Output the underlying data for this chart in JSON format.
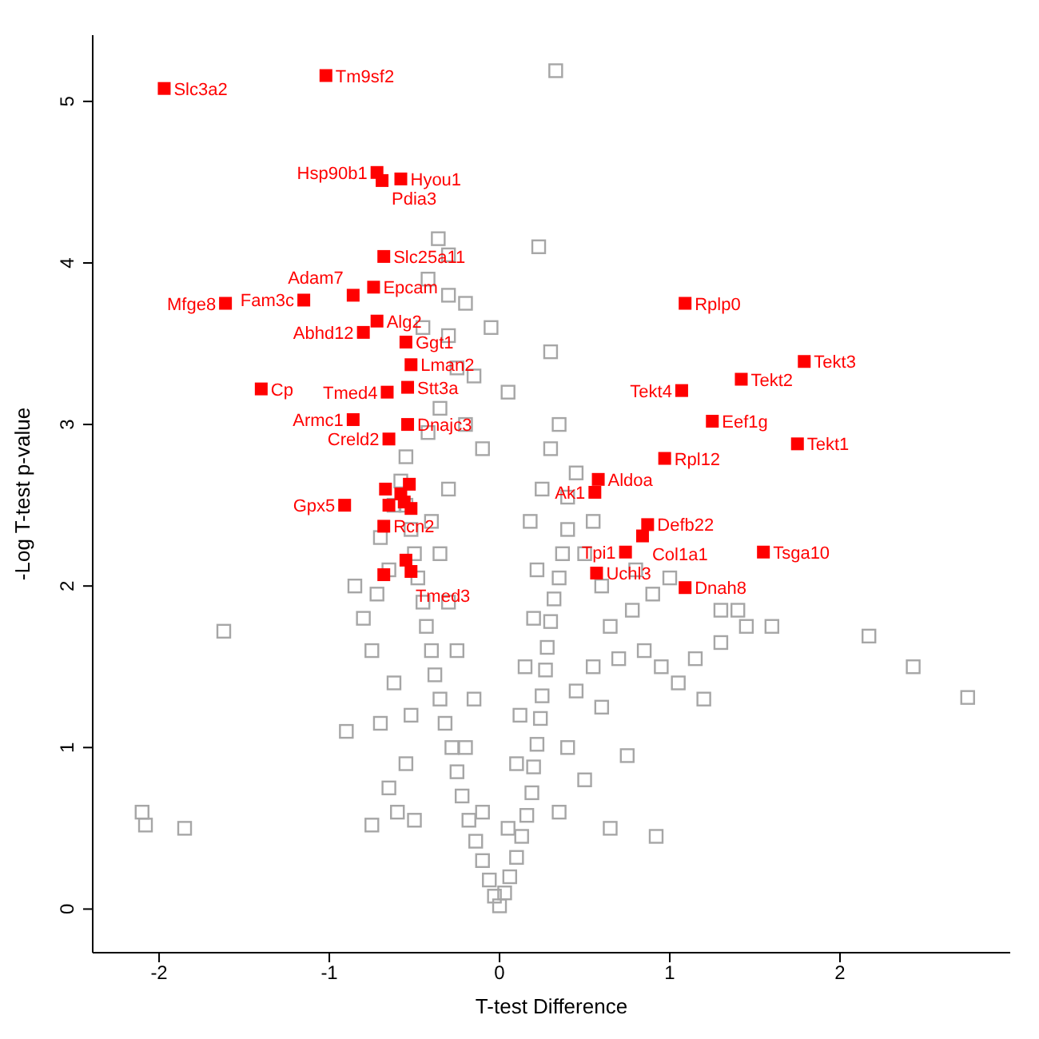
{
  "chart_data": {
    "type": "scatter",
    "xlabel": "T-test Difference",
    "ylabel": "-Log T-test p-value",
    "xlim": [
      -2.39,
      3.0
    ],
    "ylim": [
      -0.27,
      5.41
    ],
    "xticks": [
      -2,
      -1,
      0,
      1,
      2
    ],
    "yticks": [
      0,
      1,
      2,
      3,
      4,
      5
    ],
    "grid": false,
    "legend": false,
    "marker": "square",
    "series": [
      {
        "color": "#a6a6a6",
        "x": [
          0,
          -0.03,
          0.03,
          -0.06,
          0.06,
          -0.1,
          0.1,
          -0.14,
          0.13,
          -0.18,
          0.16,
          -0.22,
          0.19,
          -0.25,
          0.2,
          -0.28,
          0.22,
          -0.32,
          0.24,
          -0.35,
          0.25,
          -0.38,
          0.27,
          -0.4,
          0.28,
          -0.43,
          0.3,
          -0.45,
          0.32,
          -0.48,
          0.35,
          -0.5,
          0.37,
          -0.52,
          0.4,
          -0.55,
          -0.58,
          -0.55,
          -0.1,
          0.05,
          -0.2,
          0.1,
          -0.15,
          0.12,
          -0.25,
          0.15,
          -0.3,
          0.2,
          -0.35,
          0.22,
          -0.4,
          0.18,
          -0.3,
          0.25,
          -0.6,
          -0.5,
          -0.7,
          -0.62,
          -0.75,
          -0.8,
          -0.72,
          -0.65,
          -0.85,
          -0.7,
          -0.62,
          -0.65,
          -0.55,
          -0.52,
          0.35,
          0.5,
          0.4,
          0.6,
          0.45,
          0.55,
          0.7,
          0.85,
          0.78,
          0.65,
          0.95,
          1.05,
          1.2,
          1.15,
          1.3,
          0.9,
          1.0,
          0.6,
          0.5,
          0.8,
          1.3,
          1.45,
          0.75,
          0.65,
          -0.36,
          -0.3,
          -0.42,
          -0.3,
          -0.2,
          -0.45,
          -0.3,
          -0.25,
          -0.15,
          -0.35,
          -0.42,
          -0.2,
          -0.1,
          0.3,
          0.35,
          0.45,
          0.4,
          0.3,
          0.55,
          0.23,
          0.33,
          0.05,
          -0.05,
          -2.1,
          -2.08,
          -1.85,
          -1.62,
          -0.9,
          -0.75,
          2.17,
          2.43,
          2.75,
          0.92,
          1.4,
          1.6
        ],
        "values": [
          0.02,
          0.08,
          0.1,
          0.18,
          0.2,
          0.3,
          0.32,
          0.42,
          0.45,
          0.55,
          0.58,
          0.7,
          0.72,
          0.85,
          0.88,
          1.0,
          1.02,
          1.15,
          1.18,
          1.3,
          1.32,
          1.45,
          1.48,
          1.6,
          1.62,
          1.75,
          1.78,
          1.9,
          1.92,
          2.05,
          2.05,
          2.2,
          2.2,
          2.35,
          2.35,
          2.5,
          2.65,
          2.8,
          0.6,
          0.5,
          1.0,
          0.9,
          1.3,
          1.2,
          1.6,
          1.5,
          1.9,
          1.8,
          2.2,
          2.1,
          2.4,
          2.4,
          2.6,
          2.6,
          0.6,
          0.55,
          1.15,
          1.4,
          1.6,
          1.8,
          1.95,
          2.1,
          2.0,
          2.3,
          2.5,
          0.75,
          0.9,
          1.2,
          0.6,
          0.8,
          1.0,
          1.25,
          1.35,
          1.5,
          1.55,
          1.6,
          1.85,
          1.75,
          1.5,
          1.4,
          1.3,
          1.55,
          1.65,
          1.95,
          2.05,
          2.0,
          2.2,
          2.1,
          1.85,
          1.75,
          0.95,
          0.5,
          4.15,
          4.05,
          3.9,
          3.8,
          3.75,
          3.6,
          3.55,
          3.35,
          3.3,
          3.1,
          2.95,
          3.0,
          2.85,
          3.45,
          3.0,
          2.7,
          2.55,
          2.85,
          2.4,
          4.1,
          5.19,
          3.2,
          3.6,
          0.6,
          0.52,
          0.5,
          1.72,
          1.1,
          0.52,
          1.69,
          1.5,
          1.31,
          0.45,
          1.85,
          1.75
        ]
      },
      {
        "color": "#ff0000",
        "x": [
          -1.97,
          -1.02,
          -0.72,
          -0.58,
          -0.69,
          -0.68,
          -0.74,
          -0.86,
          -1.15,
          -1.61,
          -0.72,
          -0.8,
          -0.55,
          -0.52,
          -0.54,
          -0.66,
          -1.4,
          -0.86,
          -0.54,
          -0.65,
          -0.67,
          -0.53,
          -0.58,
          -0.91,
          -0.65,
          -0.56,
          -0.52,
          -0.68,
          -0.55,
          -0.52,
          -0.68,
          1.09,
          1.79,
          1.42,
          1.07,
          1.25,
          1.75,
          0.97,
          0.58,
          0.56,
          0.87,
          0.84,
          0.74,
          1.55,
          0.57,
          1.09
        ],
        "values": [
          5.08,
          5.16,
          4.56,
          4.52,
          4.51,
          4.04,
          3.85,
          3.8,
          3.77,
          3.75,
          3.64,
          3.57,
          3.51,
          3.37,
          3.23,
          3.2,
          3.22,
          3.03,
          3.0,
          2.91,
          2.6,
          2.63,
          2.57,
          2.5,
          2.5,
          2.52,
          2.48,
          2.37,
          2.16,
          2.09,
          2.07,
          3.75,
          3.39,
          3.28,
          3.21,
          3.02,
          2.88,
          2.79,
          2.66,
          2.58,
          2.38,
          2.31,
          2.21,
          2.21,
          2.08,
          1.99
        ]
      }
    ],
    "annotations": [
      {
        "text": "Slc3a2",
        "x": -1.97,
        "y": 5.08
      },
      {
        "text": "Tm9sf2",
        "x": -1.02,
        "y": 5.16
      },
      {
        "text": "Hsp90b1",
        "x": -0.72,
        "y": 4.56
      },
      {
        "text": "Hyou1",
        "x": -0.58,
        "y": 4.52
      },
      {
        "text": "Pdia3",
        "x": -0.69,
        "y": 4.51
      },
      {
        "text": "Slc25a11",
        "x": -0.68,
        "y": 4.04
      },
      {
        "text": "Epcam",
        "x": -0.74,
        "y": 3.85
      },
      {
        "text": "Adam7",
        "x": -0.86,
        "y": 3.8
      },
      {
        "text": "Fam3c",
        "x": -1.15,
        "y": 3.77
      },
      {
        "text": "Mfge8",
        "x": -1.61,
        "y": 3.75
      },
      {
        "text": "Alg2",
        "x": -0.72,
        "y": 3.64
      },
      {
        "text": "Abhd12",
        "x": -0.8,
        "y": 3.57
      },
      {
        "text": "Ggt1",
        "x": -0.55,
        "y": 3.51
      },
      {
        "text": "Lman2",
        "x": -0.52,
        "y": 3.37
      },
      {
        "text": "Stt3a",
        "x": -0.54,
        "y": 3.23
      },
      {
        "text": "Tmed4",
        "x": -0.66,
        "y": 3.2
      },
      {
        "text": "Cp",
        "x": -1.4,
        "y": 3.22
      },
      {
        "text": "Armc1",
        "x": -0.86,
        "y": 3.03
      },
      {
        "text": "Dnajc3",
        "x": -0.54,
        "y": 3.0
      },
      {
        "text": "Creld2",
        "x": -0.65,
        "y": 2.91
      },
      {
        "text": "Gpx5",
        "x": -0.91,
        "y": 2.5
      },
      {
        "text": "Rcn2",
        "x": -0.68,
        "y": 2.37
      },
      {
        "text": "Tmed3",
        "x": -0.55,
        "y": 2.16
      },
      {
        "text": "Rplp0",
        "x": 1.09,
        "y": 3.75
      },
      {
        "text": "Tekt3",
        "x": 1.79,
        "y": 3.39
      },
      {
        "text": "Tekt2",
        "x": 1.42,
        "y": 3.28
      },
      {
        "text": "Tekt4",
        "x": 1.07,
        "y": 3.21
      },
      {
        "text": "Eef1g",
        "x": 1.25,
        "y": 3.02
      },
      {
        "text": "Tekt1",
        "x": 1.75,
        "y": 2.88
      },
      {
        "text": "Rpl12",
        "x": 0.97,
        "y": 2.79
      },
      {
        "text": "Aldoa",
        "x": 0.58,
        "y": 2.66
      },
      {
        "text": "Ak1",
        "x": 0.56,
        "y": 2.58
      },
      {
        "text": "Defb22",
        "x": 0.87,
        "y": 2.38
      },
      {
        "text": "Col1a1",
        "x": 0.84,
        "y": 2.31
      },
      {
        "text": "Tpi1",
        "x": 0.74,
        "y": 2.21
      },
      {
        "text": "Tsga10",
        "x": 1.55,
        "y": 2.21
      },
      {
        "text": "Uchl3",
        "x": 0.57,
        "y": 2.08
      },
      {
        "text": "Dnah8",
        "x": 1.09,
        "y": 1.99
      }
    ]
  }
}
